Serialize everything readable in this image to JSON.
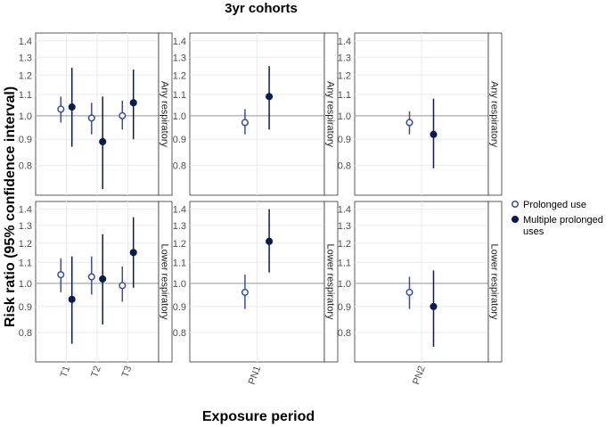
{
  "chart_data": {
    "type": "forest",
    "title": "3yr cohorts",
    "xlabel": "Exposure period",
    "ylabel": "Risk ratio (95% confidence interval)",
    "ylim": [
      0.7,
      1.45
    ],
    "log_scale": true,
    "y_ticks": [
      "0.8",
      "0.9",
      "1.0",
      "1.1",
      "1.2",
      "1.3",
      "1.4"
    ],
    "reference_line": 1.0,
    "grid": true,
    "legend_position": "right",
    "columns": [
      {
        "id": "col1",
        "categories": [
          "T1",
          "T2",
          "T3"
        ]
      },
      {
        "id": "col2",
        "categories": [
          "PN1"
        ]
      },
      {
        "id": "col3",
        "categories": [
          "PN2"
        ]
      }
    ],
    "rows": [
      "Any respiratory",
      "Lower respiratory"
    ],
    "series": [
      {
        "name": "Prolonged use",
        "color": "#3b4d9a",
        "marker": "open-circle"
      },
      {
        "name": "Multiple prolonged uses",
        "color": "#0d1b4c",
        "marker": "filled-circle"
      }
    ],
    "points": [
      {
        "row": 0,
        "col": 0,
        "x": "T1",
        "series": 0,
        "rr": 1.03,
        "lo": 0.97,
        "hi": 1.09
      },
      {
        "row": 0,
        "col": 0,
        "x": "T1",
        "series": 1,
        "rr": 1.04,
        "lo": 0.87,
        "hi": 1.24
      },
      {
        "row": 0,
        "col": 0,
        "x": "T2",
        "series": 0,
        "rr": 0.99,
        "lo": 0.92,
        "hi": 1.06
      },
      {
        "row": 0,
        "col": 0,
        "x": "T2",
        "series": 1,
        "rr": 0.89,
        "lo": 0.72,
        "hi": 1.09
      },
      {
        "row": 0,
        "col": 0,
        "x": "T3",
        "series": 0,
        "rr": 1.0,
        "lo": 0.94,
        "hi": 1.07
      },
      {
        "row": 0,
        "col": 0,
        "x": "T3",
        "series": 1,
        "rr": 1.06,
        "lo": 0.9,
        "hi": 1.23
      },
      {
        "row": 0,
        "col": 1,
        "x": "PN1",
        "series": 0,
        "rr": 0.97,
        "lo": 0.92,
        "hi": 1.03
      },
      {
        "row": 0,
        "col": 1,
        "x": "PN1",
        "series": 1,
        "rr": 1.09,
        "lo": 0.94,
        "hi": 1.25
      },
      {
        "row": 0,
        "col": 2,
        "x": "PN2",
        "series": 0,
        "rr": 0.97,
        "lo": 0.92,
        "hi": 1.02
      },
      {
        "row": 0,
        "col": 2,
        "x": "PN2",
        "series": 1,
        "rr": 0.92,
        "lo": 0.79,
        "hi": 1.08
      },
      {
        "row": 1,
        "col": 0,
        "x": "T1",
        "series": 0,
        "rr": 1.04,
        "lo": 0.96,
        "hi": 1.12
      },
      {
        "row": 1,
        "col": 0,
        "x": "T1",
        "series": 1,
        "rr": 0.93,
        "lo": 0.76,
        "hi": 1.13
      },
      {
        "row": 1,
        "col": 0,
        "x": "T2",
        "series": 0,
        "rr": 1.03,
        "lo": 0.95,
        "hi": 1.13
      },
      {
        "row": 1,
        "col": 0,
        "x": "T2",
        "series": 1,
        "rr": 1.02,
        "lo": 0.83,
        "hi": 1.25
      },
      {
        "row": 1,
        "col": 0,
        "x": "T3",
        "series": 0,
        "rr": 0.99,
        "lo": 0.92,
        "hi": 1.08
      },
      {
        "row": 1,
        "col": 0,
        "x": "T3",
        "series": 1,
        "rr": 1.15,
        "lo": 0.98,
        "hi": 1.35
      },
      {
        "row": 1,
        "col": 1,
        "x": "PN1",
        "series": 0,
        "rr": 0.96,
        "lo": 0.89,
        "hi": 1.04
      },
      {
        "row": 1,
        "col": 1,
        "x": "PN1",
        "series": 1,
        "rr": 1.21,
        "lo": 1.05,
        "hi": 1.4
      },
      {
        "row": 1,
        "col": 2,
        "x": "PN2",
        "series": 0,
        "rr": 0.96,
        "lo": 0.89,
        "hi": 1.03
      },
      {
        "row": 1,
        "col": 2,
        "x": "PN2",
        "series": 1,
        "rr": 0.9,
        "lo": 0.75,
        "hi": 1.06
      }
    ]
  }
}
